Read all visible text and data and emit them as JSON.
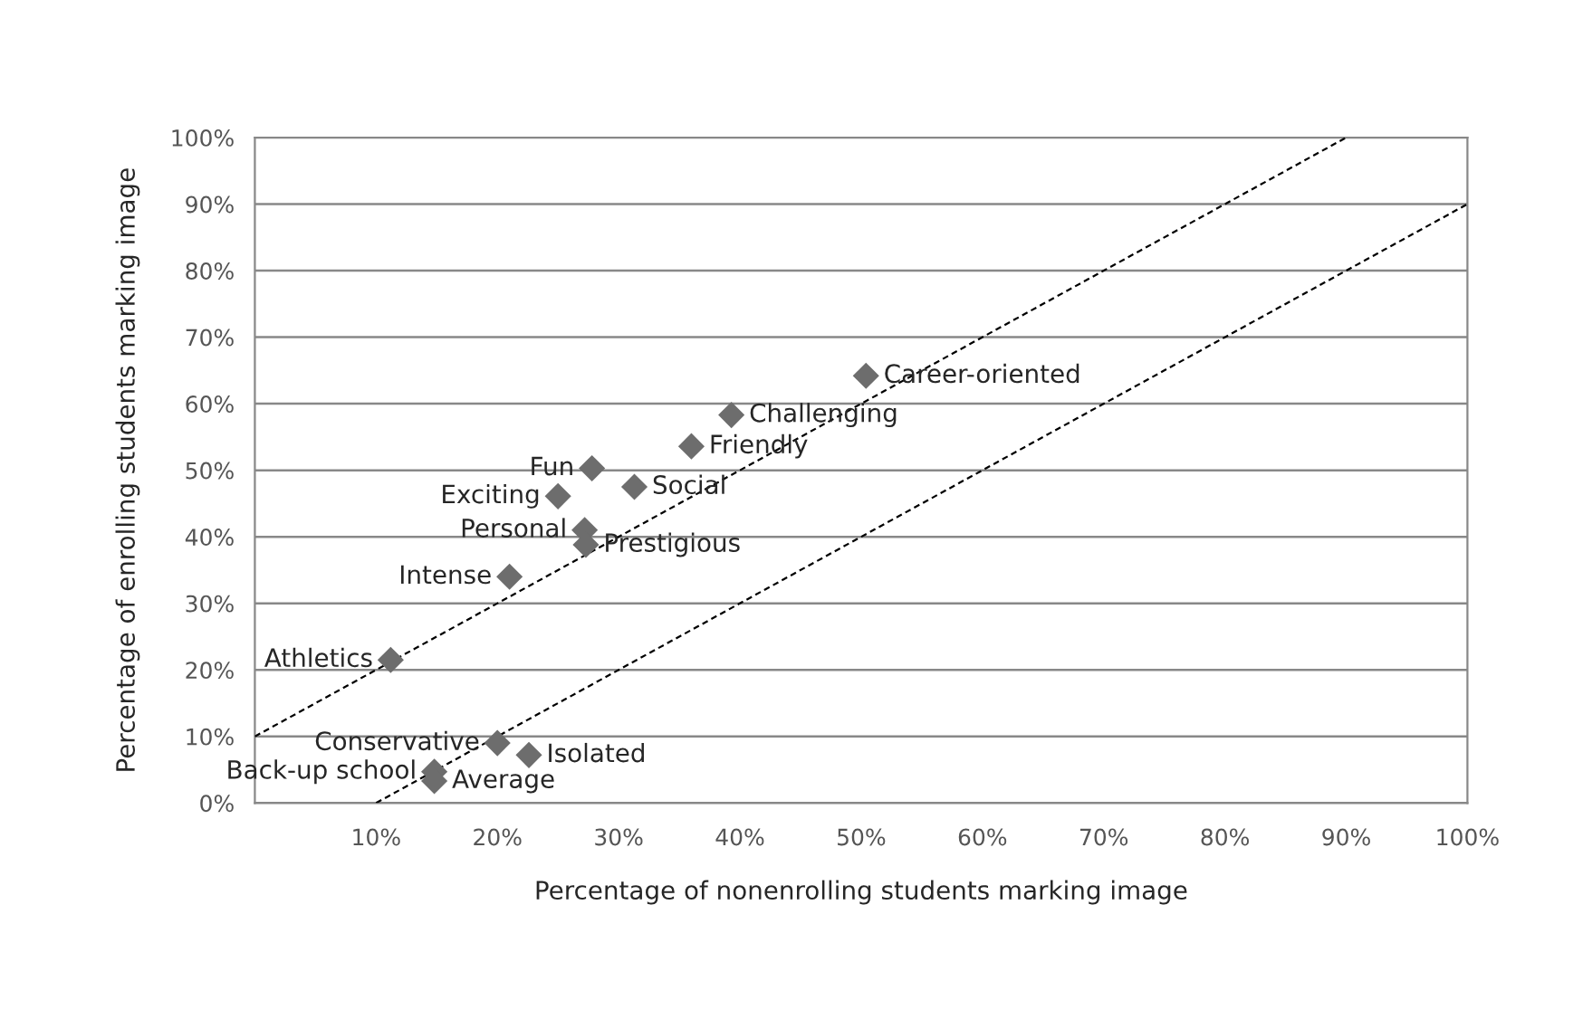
{
  "chart_data": {
    "type": "scatter",
    "xlabel": "Percentage of nonenrolling students marking image",
    "ylabel": "Percentage of enrolling students marking image",
    "series": [
      {
        "color": "#6d6d6d",
        "marker": "diamond",
        "x": [
          50.4,
          39.3,
          36.0,
          27.8,
          31.3,
          25.0,
          27.2,
          27.3,
          21.0,
          11.2,
          20.0,
          22.6,
          14.8,
          14.8
        ],
        "values": [
          64.2,
          58.3,
          53.6,
          50.3,
          47.5,
          46.1,
          41.0,
          38.8,
          34.0,
          21.5,
          9.0,
          7.2,
          4.7,
          3.3
        ]
      },
      {
        "type": "line",
        "color": "#000000",
        "line_style": "dashed",
        "x": [
          0,
          90
        ],
        "values": [
          10,
          100
        ]
      },
      {
        "type": "line",
        "color": "#000000",
        "line_style": "dashed",
        "x": [
          10,
          100
        ],
        "values": [
          0,
          90
        ]
      }
    ],
    "annotations": [
      {
        "text": "Career-oriented",
        "x": 50.4,
        "y": 64.2
      },
      {
        "text": "Challenging",
        "x": 39.3,
        "y": 58.3
      },
      {
        "text": "Friendly",
        "x": 36.0,
        "y": 53.6
      },
      {
        "text": "Fun",
        "x": 27.8,
        "y": 50.3
      },
      {
        "text": "Social",
        "x": 31.3,
        "y": 47.5
      },
      {
        "text": "Exciting",
        "x": 25.0,
        "y": 46.1
      },
      {
        "text": "Personal",
        "x": 27.2,
        "y": 41.0
      },
      {
        "text": "Prestigious",
        "x": 27.3,
        "y": 38.8
      },
      {
        "text": "Intense",
        "x": 21.0,
        "y": 34.0
      },
      {
        "text": "Athletics",
        "x": 11.2,
        "y": 21.5
      },
      {
        "text": "Conservative",
        "x": 20.0,
        "y": 9.0
      },
      {
        "text": "Isolated",
        "x": 22.6,
        "y": 7.2
      },
      {
        "text": "Back-up school",
        "x": 14.8,
        "y": 4.7
      },
      {
        "text": "Average",
        "x": 14.8,
        "y": 3.3
      }
    ],
    "xlim": [
      0,
      100
    ],
    "ylim": [
      0,
      100
    ],
    "xticks": [
      {
        "value": 10,
        "label": "10%"
      },
      {
        "value": 20,
        "label": "20%"
      },
      {
        "value": 30,
        "label": "30%"
      },
      {
        "value": 40,
        "label": "40%"
      },
      {
        "value": 50,
        "label": "50%"
      },
      {
        "value": 60,
        "label": "60%"
      },
      {
        "value": 70,
        "label": "70%"
      },
      {
        "value": 80,
        "label": "80%"
      },
      {
        "value": 90,
        "label": "90%"
      },
      {
        "value": 100,
        "label": "100%"
      }
    ],
    "yticks": [
      {
        "value": 0,
        "label": "0%"
      },
      {
        "value": 10,
        "label": "10%"
      },
      {
        "value": 20,
        "label": "20%"
      },
      {
        "value": 30,
        "label": "30%"
      },
      {
        "value": 40,
        "label": "40%"
      },
      {
        "value": 50,
        "label": "50%"
      },
      {
        "value": 60,
        "label": "60%"
      },
      {
        "value": 70,
        "label": "70%"
      },
      {
        "value": 80,
        "label": "80%"
      },
      {
        "value": 90,
        "label": "90%"
      },
      {
        "value": 100,
        "label": "100%"
      }
    ],
    "grid": "y",
    "legend": false
  }
}
